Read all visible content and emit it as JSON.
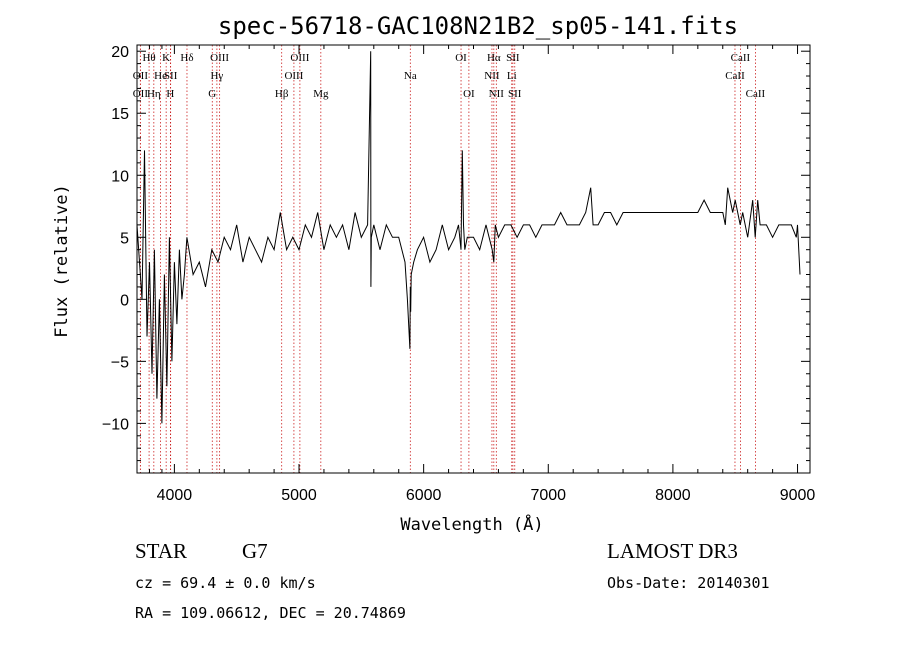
{
  "chart_data": {
    "type": "line",
    "title": "spec-56718-GAC108N21B2_sp05-141.fits",
    "xlabel": "Wavelength (Å)",
    "ylabel": "Flux (relative)",
    "xlim": [
      3700,
      9100
    ],
    "ylim": [
      -14,
      20.5
    ],
    "xticks": [
      4000,
      5000,
      6000,
      7000,
      8000,
      9000
    ],
    "xtick_labels": [
      "4000",
      "5000",
      "6000",
      "7000",
      "8000",
      "9000"
    ],
    "yticks": [
      -10,
      -5,
      0,
      5,
      10,
      15,
      20
    ],
    "ytick_labels": [
      "−10",
      "−5",
      "0",
      "5",
      "10",
      "15",
      "20"
    ],
    "series": [
      {
        "name": "flux",
        "x": [
          3700,
          3740,
          3760,
          3780,
          3800,
          3820,
          3840,
          3860,
          3880,
          3900,
          3920,
          3940,
          3960,
          3980,
          4000,
          4020,
          4040,
          4060,
          4080,
          4100,
          4150,
          4200,
          4250,
          4300,
          4350,
          4400,
          4450,
          4500,
          4550,
          4600,
          4650,
          4700,
          4750,
          4800,
          4850,
          4900,
          4950,
          5000,
          5050,
          5100,
          5150,
          5200,
          5250,
          5300,
          5350,
          5400,
          5450,
          5500,
          5550,
          5575,
          5577,
          5580,
          5600,
          5650,
          5700,
          5750,
          5800,
          5850,
          5870,
          5890,
          5893,
          5896,
          5900,
          5920,
          5950,
          6000,
          6050,
          6100,
          6150,
          6200,
          6250,
          6280,
          6300,
          6310,
          6320,
          6330,
          6350,
          6400,
          6450,
          6500,
          6550,
          6563,
          6575,
          6600,
          6650,
          6700,
          6750,
          6800,
          6850,
          6900,
          6950,
          7000,
          7050,
          7100,
          7150,
          7200,
          7250,
          7300,
          7340,
          7360,
          7400,
          7450,
          7500,
          7550,
          7600,
          7650,
          7700,
          7750,
          7800,
          7850,
          7900,
          7950,
          8000,
          8050,
          8100,
          8150,
          8200,
          8250,
          8300,
          8350,
          8400,
          8420,
          8440,
          8460,
          8480,
          8500,
          8540,
          8560,
          8600,
          8640,
          8660,
          8680,
          8700,
          8750,
          8800,
          8850,
          8900,
          8950,
          8990,
          9000,
          9020
        ],
        "y": [
          6,
          0,
          12,
          -3,
          3,
          -6,
          4,
          -8,
          0,
          -10,
          2,
          -7,
          5,
          -5,
          3,
          -2,
          4,
          0,
          2,
          5,
          2,
          3,
          1,
          4,
          3,
          5,
          4,
          6,
          3,
          5,
          4,
          3,
          5,
          4,
          7,
          4,
          5,
          4,
          6,
          5,
          7,
          4,
          6,
          5,
          6,
          4,
          7,
          5,
          6,
          20,
          1,
          5,
          6,
          4,
          6,
          5,
          5,
          3,
          0,
          -4,
          1,
          -1,
          2,
          3,
          4,
          5,
          3,
          4,
          6,
          4,
          5,
          6,
          4,
          12,
          6,
          4,
          5,
          5,
          4,
          6,
          4,
          3,
          6,
          5,
          6,
          6,
          5,
          6,
          6,
          5,
          6,
          6,
          6,
          7,
          6,
          6,
          6,
          7,
          9,
          6,
          6,
          7,
          7,
          6,
          7,
          7,
          7,
          7,
          7,
          7,
          7,
          7,
          7,
          7,
          7,
          7,
          7,
          8,
          7,
          7,
          7,
          6,
          9,
          8,
          7,
          8,
          6,
          7,
          5,
          8,
          5,
          8,
          6,
          6,
          5,
          6,
          6,
          6,
          5,
          6,
          2
        ]
      }
    ],
    "line_labels": [
      {
        "wl": 3797,
        "label": "Hθ",
        "row": 1
      },
      {
        "wl": 3727,
        "label": "OII",
        "row": 2
      },
      {
        "wl": 3727,
        "label": "OII",
        "row": 3
      },
      {
        "wl": 3835,
        "label": "Hη",
        "row": 3
      },
      {
        "wl": 3889,
        "label": "He",
        "row": 2
      },
      {
        "wl": 3934,
        "label": "K",
        "row": 1
      },
      {
        "wl": 3968,
        "label": "H",
        "row": 3
      },
      {
        "wl": 3970,
        "label": "SII",
        "row": 2
      },
      {
        "wl": 4101,
        "label": "Hδ",
        "row": 1
      },
      {
        "wl": 4341,
        "label": "Hγ",
        "row": 2
      },
      {
        "wl": 4304,
        "label": "G",
        "row": 3
      },
      {
        "wl": 4363,
        "label": "OIII",
        "row": 1
      },
      {
        "wl": 4861,
        "label": "Hβ",
        "row": 3
      },
      {
        "wl": 4959,
        "label": "OIII",
        "row": 2
      },
      {
        "wl": 5007,
        "label": "OIII",
        "row": 1
      },
      {
        "wl": 5175,
        "label": "Mg",
        "row": 3
      },
      {
        "wl": 5893,
        "label": "Na",
        "row": 2
      },
      {
        "wl": 6300,
        "label": "OI",
        "row": 1
      },
      {
        "wl": 6363,
        "label": "OI",
        "row": 3
      },
      {
        "wl": 6548,
        "label": "NII",
        "row": 2
      },
      {
        "wl": 6563,
        "label": "Hα",
        "row": 1
      },
      {
        "wl": 6583,
        "label": "NII",
        "row": 3
      },
      {
        "wl": 6707,
        "label": "Li",
        "row": 2
      },
      {
        "wl": 6716,
        "label": "SII",
        "row": 1
      },
      {
        "wl": 6731,
        "label": "SII",
        "row": 3
      },
      {
        "wl": 8498,
        "label": "CaII",
        "row": 2
      },
      {
        "wl": 8542,
        "label": "CaII",
        "row": 1
      },
      {
        "wl": 8662,
        "label": "CaII",
        "row": 3
      }
    ],
    "line_marker_color": "#cc2222"
  },
  "info": {
    "object_class": "STAR",
    "subclass": "G7",
    "cz": "cz = 69.4 ± 0.0 km/s",
    "coords": "RA = 109.06612, DEC =  20.74869",
    "survey": "LAMOST DR3",
    "obs_date": "Obs-Date: 20140301"
  }
}
